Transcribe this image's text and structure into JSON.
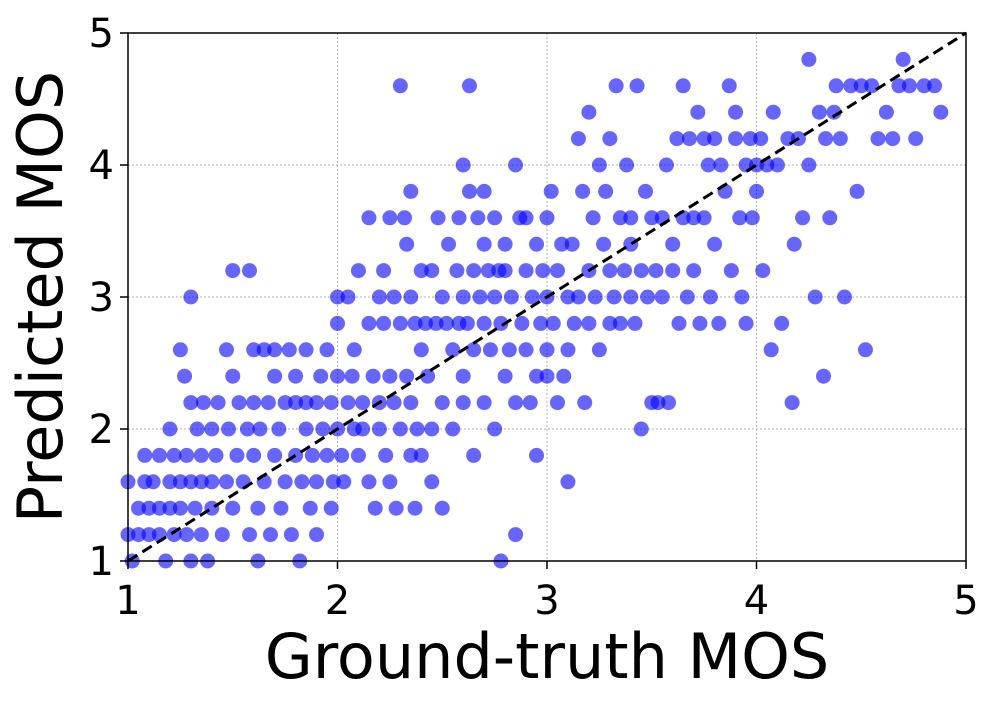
{
  "chart_data": {
    "type": "scatter",
    "title": "",
    "xlabel": "Ground-truth MOS",
    "ylabel": "Predicted MOS",
    "xlim": [
      1,
      5
    ],
    "ylim": [
      1,
      5
    ],
    "xticks": [
      "1",
      "2",
      "3",
      "4",
      "5"
    ],
    "yticks": [
      "1",
      "2",
      "3",
      "4",
      "5"
    ],
    "grid": true,
    "reference_line": {
      "style": "dashed",
      "color": "#000000",
      "from": [
        1,
        1
      ],
      "to": [
        5,
        5
      ]
    },
    "marker_color": "#0000ff",
    "series": [
      {
        "points": [
          [
            1.0,
            1.6
          ],
          [
            1.0,
            1.2
          ],
          [
            1.02,
            1.0
          ],
          [
            1.05,
            1.4
          ],
          [
            1.05,
            1.2
          ],
          [
            1.08,
            1.6
          ],
          [
            1.08,
            1.8
          ],
          [
            1.1,
            1.4
          ],
          [
            1.1,
            1.2
          ],
          [
            1.12,
            1.6
          ],
          [
            1.15,
            1.4
          ],
          [
            1.15,
            1.8
          ],
          [
            1.15,
            1.2
          ],
          [
            1.18,
            1.0
          ],
          [
            1.2,
            1.6
          ],
          [
            1.2,
            1.4
          ],
          [
            1.2,
            2.0
          ],
          [
            1.22,
            1.8
          ],
          [
            1.22,
            1.2
          ],
          [
            1.25,
            1.6
          ],
          [
            1.25,
            1.4
          ],
          [
            1.25,
            2.6
          ],
          [
            1.27,
            2.4
          ],
          [
            1.28,
            1.2
          ],
          [
            1.28,
            1.8
          ],
          [
            1.3,
            1.6
          ],
          [
            1.3,
            3.0
          ],
          [
            1.3,
            2.2
          ],
          [
            1.3,
            1.0
          ],
          [
            1.32,
            1.4
          ],
          [
            1.33,
            2.0
          ],
          [
            1.35,
            1.8
          ],
          [
            1.35,
            1.6
          ],
          [
            1.35,
            1.2
          ],
          [
            1.36,
            2.2
          ],
          [
            1.38,
            1.0
          ],
          [
            1.4,
            2.0
          ],
          [
            1.4,
            1.6
          ],
          [
            1.4,
            1.4
          ],
          [
            1.42,
            1.8
          ],
          [
            1.43,
            2.2
          ],
          [
            1.45,
            1.2
          ],
          [
            1.47,
            2.6
          ],
          [
            1.47,
            1.6
          ],
          [
            1.48,
            2.0
          ],
          [
            1.5,
            2.4
          ],
          [
            1.5,
            3.2
          ],
          [
            1.5,
            1.4
          ],
          [
            1.52,
            1.8
          ],
          [
            1.53,
            2.2
          ],
          [
            1.55,
            1.6
          ],
          [
            1.57,
            2.0
          ],
          [
            1.58,
            3.2
          ],
          [
            1.58,
            1.2
          ],
          [
            1.6,
            2.6
          ],
          [
            1.6,
            2.2
          ],
          [
            1.6,
            1.8
          ],
          [
            1.62,
            1.4
          ],
          [
            1.62,
            1.0
          ],
          [
            1.63,
            2.0
          ],
          [
            1.65,
            2.6
          ],
          [
            1.65,
            1.6
          ],
          [
            1.67,
            2.2
          ],
          [
            1.68,
            1.2
          ],
          [
            1.7,
            2.4
          ],
          [
            1.7,
            2.6
          ],
          [
            1.7,
            1.8
          ],
          [
            1.72,
            2.0
          ],
          [
            1.73,
            1.4
          ],
          [
            1.75,
            2.2
          ],
          [
            1.75,
            1.6
          ],
          [
            1.77,
            2.6
          ],
          [
            1.78,
            1.2
          ],
          [
            1.8,
            2.4
          ],
          [
            1.8,
            1.8
          ],
          [
            1.8,
            2.2
          ],
          [
            1.82,
            1.0
          ],
          [
            1.83,
            1.6
          ],
          [
            1.85,
            2.2
          ],
          [
            1.85,
            2.0
          ],
          [
            1.85,
            2.6
          ],
          [
            1.87,
            1.4
          ],
          [
            1.88,
            1.8
          ],
          [
            1.9,
            2.2
          ],
          [
            1.9,
            1.6
          ],
          [
            1.9,
            1.2
          ],
          [
            1.92,
            2.4
          ],
          [
            1.93,
            2.0
          ],
          [
            1.95,
            1.8
          ],
          [
            1.95,
            2.6
          ],
          [
            1.97,
            2.2
          ],
          [
            1.97,
            1.4
          ],
          [
            1.98,
            1.6
          ],
          [
            2.0,
            2.8
          ],
          [
            2.0,
            2.4
          ],
          [
            2.0,
            2.0
          ],
          [
            2.0,
            3.0
          ],
          [
            2.02,
            1.8
          ],
          [
            2.03,
            1.6
          ],
          [
            2.05,
            2.2
          ],
          [
            2.05,
            3.0
          ],
          [
            2.07,
            2.4
          ],
          [
            2.08,
            2.0
          ],
          [
            2.08,
            2.6
          ],
          [
            2.1,
            3.2
          ],
          [
            2.1,
            1.8
          ],
          [
            2.12,
            2.2
          ],
          [
            2.12,
            2.0
          ],
          [
            2.15,
            3.6
          ],
          [
            2.15,
            2.8
          ],
          [
            2.15,
            1.6
          ],
          [
            2.17,
            2.4
          ],
          [
            2.18,
            1.4
          ],
          [
            2.2,
            3.0
          ],
          [
            2.2,
            2.2
          ],
          [
            2.2,
            2.0
          ],
          [
            2.22,
            2.8
          ],
          [
            2.22,
            3.2
          ],
          [
            2.23,
            1.8
          ],
          [
            2.25,
            3.6
          ],
          [
            2.25,
            2.4
          ],
          [
            2.25,
            1.6
          ],
          [
            2.27,
            2.2
          ],
          [
            2.27,
            3.0
          ],
          [
            2.28,
            1.4
          ],
          [
            2.3,
            2.8
          ],
          [
            2.3,
            2.0
          ],
          [
            2.3,
            4.6
          ],
          [
            2.32,
            3.6
          ],
          [
            2.33,
            2.4
          ],
          [
            2.33,
            3.4
          ],
          [
            2.35,
            3.8
          ],
          [
            2.35,
            3.0
          ],
          [
            2.35,
            2.2
          ],
          [
            2.35,
            1.8
          ],
          [
            2.37,
            2.8
          ],
          [
            2.37,
            1.4
          ],
          [
            2.38,
            2.0
          ],
          [
            2.4,
            3.2
          ],
          [
            2.4,
            2.6
          ],
          [
            2.4,
            1.8
          ],
          [
            2.42,
            2.8
          ],
          [
            2.43,
            2.4
          ],
          [
            2.45,
            3.2
          ],
          [
            2.45,
            2.0
          ],
          [
            2.45,
            1.6
          ],
          [
            2.47,
            2.8
          ],
          [
            2.48,
            3.6
          ],
          [
            2.5,
            2.2
          ],
          [
            2.5,
            3.0
          ],
          [
            2.5,
            1.4
          ],
          [
            2.52,
            2.8
          ],
          [
            2.53,
            3.4
          ],
          [
            2.55,
            2.6
          ],
          [
            2.55,
            2.0
          ],
          [
            2.57,
            3.2
          ],
          [
            2.58,
            2.8
          ],
          [
            2.58,
            3.6
          ],
          [
            2.6,
            3.0
          ],
          [
            2.6,
            2.4
          ],
          [
            2.6,
            4.0
          ],
          [
            2.6,
            2.2
          ],
          [
            2.62,
            2.8
          ],
          [
            2.63,
            3.8
          ],
          [
            2.63,
            4.6
          ],
          [
            2.65,
            3.2
          ],
          [
            2.65,
            2.6
          ],
          [
            2.65,
            1.8
          ],
          [
            2.67,
            3.6
          ],
          [
            2.68,
            3.0
          ],
          [
            2.7,
            3.4
          ],
          [
            2.7,
            2.8
          ],
          [
            2.7,
            2.2
          ],
          [
            2.7,
            3.8
          ],
          [
            2.72,
            3.2
          ],
          [
            2.73,
            2.6
          ],
          [
            2.75,
            3.6
          ],
          [
            2.75,
            3.0
          ],
          [
            2.75,
            2.0
          ],
          [
            2.77,
            3.2
          ],
          [
            2.78,
            2.8
          ],
          [
            2.78,
            1.0
          ],
          [
            2.8,
            3.4
          ],
          [
            2.8,
            2.4
          ],
          [
            2.8,
            3.2
          ],
          [
            2.82,
            2.6
          ],
          [
            2.83,
            3.0
          ],
          [
            2.85,
            4.0
          ],
          [
            2.85,
            2.2
          ],
          [
            2.85,
            1.2
          ],
          [
            2.87,
            3.6
          ],
          [
            2.88,
            2.8
          ],
          [
            2.9,
            3.2
          ],
          [
            2.9,
            2.6
          ],
          [
            2.9,
            3.6
          ],
          [
            2.92,
            2.2
          ],
          [
            2.93,
            3.0
          ],
          [
            2.95,
            3.4
          ],
          [
            2.95,
            2.4
          ],
          [
            2.95,
            1.8
          ],
          [
            2.97,
            2.8
          ],
          [
            2.98,
            3.2
          ],
          [
            3.0,
            3.0
          ],
          [
            3.0,
            2.6
          ],
          [
            3.0,
            3.6
          ],
          [
            3.0,
            2.4
          ],
          [
            3.02,
            3.8
          ],
          [
            3.03,
            2.8
          ],
          [
            3.05,
            3.2
          ],
          [
            3.05,
            2.2
          ],
          [
            3.07,
            3.4
          ],
          [
            3.08,
            2.4
          ],
          [
            3.1,
            3.0
          ],
          [
            3.1,
            2.6
          ],
          [
            3.1,
            1.6
          ],
          [
            3.12,
            3.4
          ],
          [
            3.13,
            2.8
          ],
          [
            3.15,
            4.2
          ],
          [
            3.15,
            3.0
          ],
          [
            3.17,
            3.8
          ],
          [
            3.18,
            2.2
          ],
          [
            3.2,
            3.2
          ],
          [
            3.2,
            2.8
          ],
          [
            3.2,
            4.4
          ],
          [
            3.22,
            3.6
          ],
          [
            3.23,
            3.0
          ],
          [
            3.25,
            4.0
          ],
          [
            3.25,
            2.6
          ],
          [
            3.27,
            3.4
          ],
          [
            3.28,
            3.8
          ],
          [
            3.3,
            3.2
          ],
          [
            3.3,
            2.8
          ],
          [
            3.3,
            4.2
          ],
          [
            3.32,
            3.0
          ],
          [
            3.33,
            4.6
          ],
          [
            3.35,
            3.6
          ],
          [
            3.35,
            2.8
          ],
          [
            3.37,
            3.2
          ],
          [
            3.38,
            4.0
          ],
          [
            3.4,
            3.4
          ],
          [
            3.4,
            3.6
          ],
          [
            3.4,
            3.0
          ],
          [
            3.42,
            2.8
          ],
          [
            3.43,
            4.6
          ],
          [
            3.45,
            3.2
          ],
          [
            3.45,
            2.0
          ],
          [
            3.47,
            3.8
          ],
          [
            3.48,
            3.0
          ],
          [
            3.5,
            3.6
          ],
          [
            3.5,
            2.2
          ],
          [
            3.52,
            3.2
          ],
          [
            3.53,
            2.2
          ],
          [
            3.55,
            3.6
          ],
          [
            3.55,
            3.0
          ],
          [
            3.57,
            4.0
          ],
          [
            3.58,
            2.2
          ],
          [
            3.6,
            3.4
          ],
          [
            3.6,
            3.2
          ],
          [
            3.62,
            4.2
          ],
          [
            3.63,
            2.8
          ],
          [
            3.65,
            3.6
          ],
          [
            3.65,
            4.6
          ],
          [
            3.67,
            3.0
          ],
          [
            3.68,
            4.2
          ],
          [
            3.7,
            3.6
          ],
          [
            3.7,
            3.2
          ],
          [
            3.72,
            4.4
          ],
          [
            3.73,
            2.8
          ],
          [
            3.75,
            4.2
          ],
          [
            3.75,
            3.6
          ],
          [
            3.77,
            4.0
          ],
          [
            3.78,
            3.0
          ],
          [
            3.8,
            4.2
          ],
          [
            3.8,
            3.4
          ],
          [
            3.82,
            2.8
          ],
          [
            3.83,
            4.0
          ],
          [
            3.85,
            3.8
          ],
          [
            3.87,
            4.6
          ],
          [
            3.88,
            3.2
          ],
          [
            3.9,
            4.2
          ],
          [
            3.9,
            4.4
          ],
          [
            3.92,
            3.6
          ],
          [
            3.93,
            3.0
          ],
          [
            3.95,
            4.0
          ],
          [
            3.95,
            2.8
          ],
          [
            3.97,
            4.2
          ],
          [
            3.98,
            3.6
          ],
          [
            4.0,
            4.0
          ],
          [
            4.0,
            3.8
          ],
          [
            4.02,
            4.2
          ],
          [
            4.03,
            3.2
          ],
          [
            4.05,
            4.0
          ],
          [
            4.07,
            2.6
          ],
          [
            4.08,
            4.4
          ],
          [
            4.1,
            4.0
          ],
          [
            4.12,
            2.8
          ],
          [
            4.15,
            4.2
          ],
          [
            4.17,
            2.2
          ],
          [
            4.18,
            3.4
          ],
          [
            4.2,
            4.2
          ],
          [
            4.22,
            3.6
          ],
          [
            4.25,
            4.8
          ],
          [
            4.25,
            4.0
          ],
          [
            4.28,
            3.0
          ],
          [
            4.3,
            4.4
          ],
          [
            4.32,
            2.4
          ],
          [
            4.33,
            4.2
          ],
          [
            4.35,
            3.6
          ],
          [
            4.37,
            4.4
          ],
          [
            4.38,
            4.6
          ],
          [
            4.4,
            4.2
          ],
          [
            4.42,
            3.0
          ],
          [
            4.45,
            4.6
          ],
          [
            4.48,
            3.8
          ],
          [
            4.5,
            4.6
          ],
          [
            4.52,
            2.6
          ],
          [
            4.55,
            4.6
          ],
          [
            4.58,
            4.2
          ],
          [
            4.62,
            4.4
          ],
          [
            4.65,
            4.2
          ],
          [
            4.68,
            4.6
          ],
          [
            4.7,
            4.8
          ],
          [
            4.73,
            4.6
          ],
          [
            4.76,
            4.2
          ],
          [
            4.8,
            4.6
          ],
          [
            4.85,
            4.6
          ],
          [
            4.88,
            4.4
          ]
        ]
      }
    ]
  }
}
